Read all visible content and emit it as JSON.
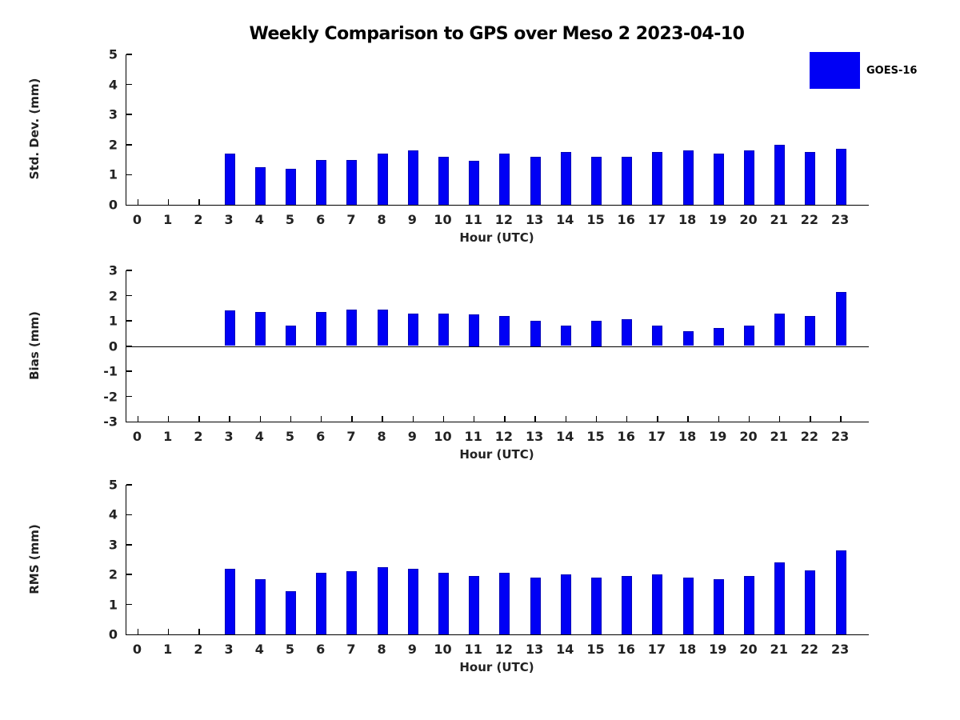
{
  "title": "Weekly Comparison to GPS over Meso 2 2023-04-10",
  "legend": {
    "label": "GOES-16",
    "color": "#0000F5"
  },
  "colors": {
    "bar_fill": "#0000F5",
    "bar_edge": "#0000B8",
    "axis": "#000000"
  },
  "chart_data": [
    {
      "type": "bar",
      "ylabel": "Std. Dev. (mm)",
      "xlabel": "Hour (UTC)",
      "ylim": [
        0,
        5
      ],
      "yticks": [
        0,
        1,
        2,
        3,
        4,
        5
      ],
      "categories": [
        "0",
        "1",
        "2",
        "3",
        "4",
        "5",
        "6",
        "7",
        "8",
        "9",
        "10",
        "11",
        "12",
        "13",
        "14",
        "15",
        "16",
        "17",
        "18",
        "19",
        "20",
        "21",
        "22",
        "23"
      ],
      "series": [
        {
          "name": "GOES-16",
          "values": [
            null,
            null,
            null,
            1.7,
            1.25,
            1.2,
            1.5,
            1.5,
            1.7,
            1.8,
            1.6,
            1.45,
            1.7,
            1.6,
            1.75,
            1.6,
            1.6,
            1.75,
            1.8,
            1.7,
            1.8,
            2.0,
            1.75,
            1.85
          ]
        }
      ],
      "grid": false,
      "legend_position": "outside-top-right"
    },
    {
      "type": "bar",
      "ylabel": "Bias (mm)",
      "xlabel": "Hour (UTC)",
      "ylim": [
        -3,
        3
      ],
      "yticks": [
        -3,
        -2,
        -1,
        0,
        1,
        2,
        3
      ],
      "categories": [
        "0",
        "1",
        "2",
        "3",
        "4",
        "5",
        "6",
        "7",
        "8",
        "9",
        "10",
        "11",
        "12",
        "13",
        "14",
        "15",
        "16",
        "17",
        "18",
        "19",
        "20",
        "21",
        "22",
        "23"
      ],
      "series": [
        {
          "name": "GOES-16",
          "values": [
            null,
            null,
            null,
            1.4,
            1.35,
            0.8,
            1.35,
            1.45,
            1.45,
            1.3,
            1.3,
            1.25,
            1.2,
            1.0,
            0.8,
            1.0,
            1.05,
            0.8,
            0.6,
            0.7,
            0.8,
            1.3,
            1.2,
            2.15
          ]
        }
      ],
      "grid": false,
      "zero_line": true
    },
    {
      "type": "bar",
      "ylabel": "RMS (mm)",
      "xlabel": "Hour (UTC)",
      "ylim": [
        0,
        5
      ],
      "yticks": [
        0,
        1,
        2,
        3,
        4,
        5
      ],
      "categories": [
        "0",
        "1",
        "2",
        "3",
        "4",
        "5",
        "6",
        "7",
        "8",
        "9",
        "10",
        "11",
        "12",
        "13",
        "14",
        "15",
        "16",
        "17",
        "18",
        "19",
        "20",
        "21",
        "22",
        "23"
      ],
      "series": [
        {
          "name": "GOES-16",
          "values": [
            null,
            null,
            null,
            2.2,
            1.85,
            1.45,
            2.05,
            2.1,
            2.25,
            2.2,
            2.05,
            1.95,
            2.05,
            1.9,
            2.0,
            1.9,
            1.95,
            2.0,
            1.9,
            1.85,
            1.95,
            2.4,
            2.15,
            2.8
          ]
        }
      ],
      "grid": false
    }
  ]
}
